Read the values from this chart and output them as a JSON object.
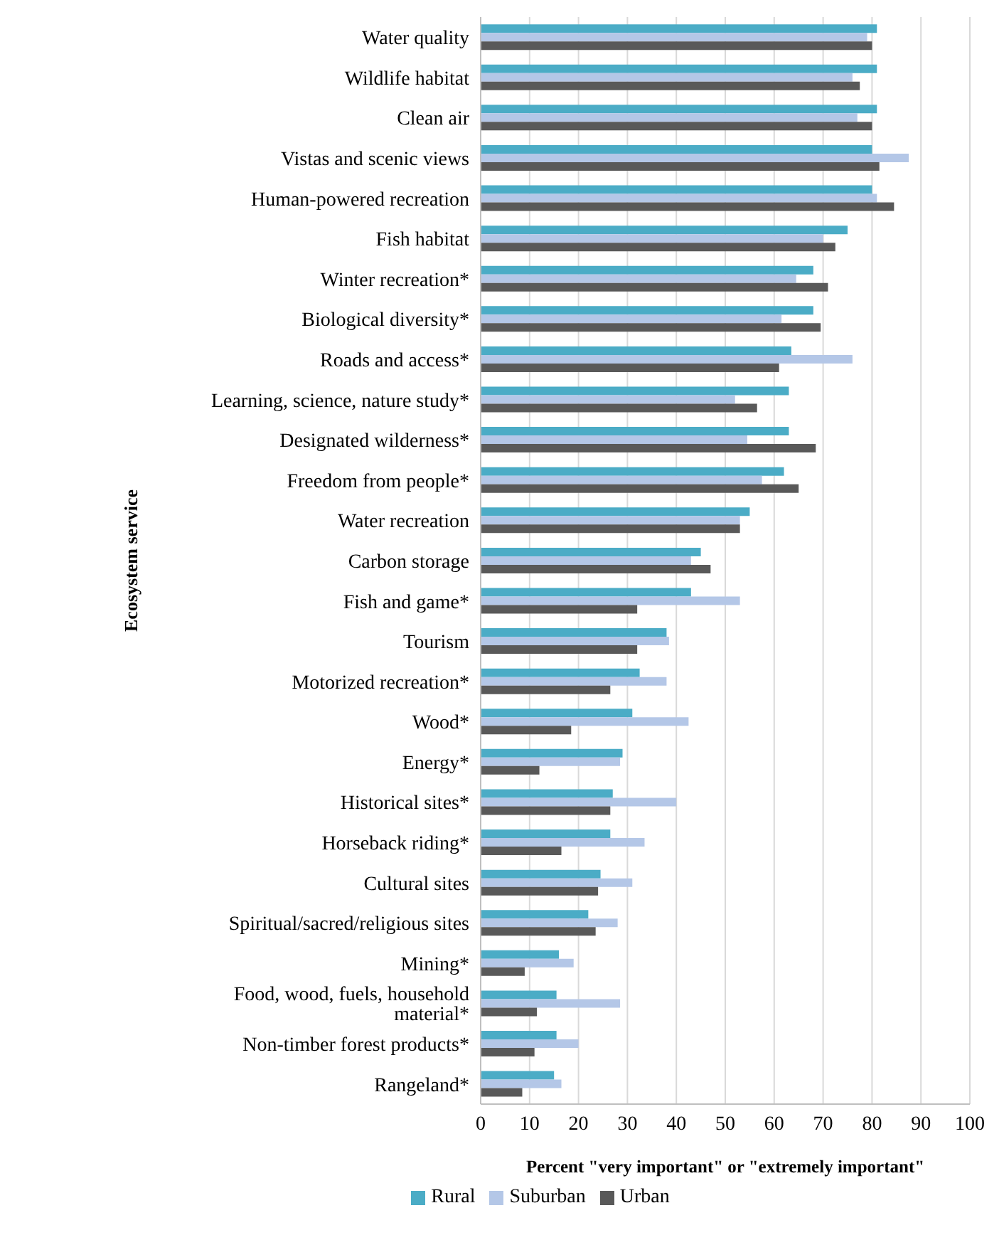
{
  "chart_data": {
    "type": "bar",
    "orientation": "horizontal",
    "xlabel": "Percent \"very important\" or \"extremely important\"",
    "ylabel": "Ecosystem service",
    "categories": [
      "Water quality",
      "Wildlife habitat",
      "Clean air",
      "Vistas and scenic views",
      "Human-powered recreation",
      "Fish habitat",
      "Winter recreation*",
      "Biological diversity*",
      "Roads and access*",
      "Learning, science, nature study*",
      "Designated wilderness*",
      "Freedom from people*",
      "Water recreation",
      "Carbon storage",
      "Fish and game*",
      "Tourism",
      "Motorized recreation*",
      "Wood*",
      "Energy*",
      "Historical sites*",
      "Horseback riding*",
      "Cultural sites",
      "Spiritual/sacred/religious sites",
      "Mining*",
      "Food, wood, fuels, household material*",
      "Non-timber forest products*",
      "Rangeland*"
    ],
    "series": [
      {
        "name": "Rural",
        "color": "#4bacc6",
        "values": [
          81,
          81,
          81,
          80,
          80,
          75,
          68,
          68,
          63.5,
          63,
          63,
          62,
          55,
          45,
          43,
          38,
          32.5,
          31,
          29,
          27,
          26.5,
          24.5,
          22,
          16,
          15.5,
          15.5,
          15
        ]
      },
      {
        "name": "Suburban",
        "color": "#b4c7e7",
        "values": [
          79,
          76,
          77,
          87.5,
          81,
          70,
          64.5,
          61.5,
          76,
          52,
          54.5,
          57.5,
          53,
          43,
          53,
          38.5,
          38,
          42.5,
          28.5,
          40,
          33.5,
          31,
          28,
          19,
          28.5,
          20,
          16.5
        ]
      },
      {
        "name": "Urban",
        "color": "#595959",
        "values": [
          80,
          77.5,
          80,
          81.5,
          84.5,
          72.5,
          71,
          69.5,
          61,
          56.5,
          68.5,
          65,
          53,
          47,
          32,
          32,
          26.5,
          18.5,
          12,
          26.5,
          16.5,
          24,
          23.5,
          9,
          11.5,
          11,
          8.5
        ]
      }
    ],
    "xlim": [
      0,
      100
    ],
    "xticks": [
      0,
      10,
      20,
      30,
      40,
      50,
      60,
      70,
      80,
      90,
      100
    ],
    "grid": "x",
    "legend": "bottom"
  }
}
